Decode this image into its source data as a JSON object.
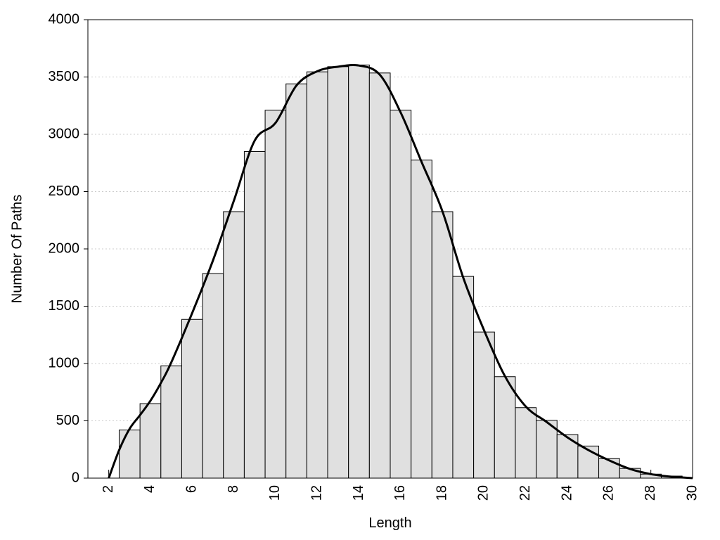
{
  "chart_data": {
    "type": "histogram",
    "xlabel": "Length",
    "ylabel": "Number Of Paths",
    "bins": [
      2.5,
      3.5,
      4.5,
      5.5,
      6.5,
      7.5,
      8.5,
      9.5,
      10.5,
      11.5,
      12.5,
      13.5,
      14.5,
      15.5,
      16.5,
      17.5,
      18.5,
      19.5,
      20.5,
      21.5,
      22.5,
      23.5,
      24.5,
      25.5,
      26.5,
      27.5,
      28.5,
      29.5
    ],
    "counts": [
      420,
      650,
      980,
      1385,
      1785,
      2325,
      2850,
      3210,
      3440,
      3545,
      3590,
      3605,
      3535,
      3210,
      2775,
      2325,
      1760,
      1275,
      885,
      615,
      505,
      380,
      280,
      170,
      85,
      35,
      18
    ],
    "color": "#e0e0e0",
    "curve": {
      "x": [
        2,
        2.5,
        3,
        3.5,
        4,
        4.5,
        5,
        6,
        7,
        8,
        9,
        10,
        11,
        12,
        13,
        14,
        15,
        16,
        17,
        18,
        19,
        20,
        21,
        22,
        23,
        24,
        25,
        26,
        27,
        28,
        29,
        30
      ],
      "y": [
        0,
        245,
        430,
        550,
        675,
        830,
        1010,
        1440,
        1900,
        2420,
        2945,
        3100,
        3425,
        3550,
        3590,
        3600,
        3520,
        3190,
        2760,
        2330,
        1750,
        1290,
        890,
        625,
        490,
        355,
        245,
        155,
        80,
        35,
        12,
        0
      ],
      "color": "#000000"
    },
    "xlim": [
      1,
      30
    ],
    "ylim": [
      0,
      4000
    ],
    "xticks": [
      2,
      4,
      6,
      8,
      10,
      12,
      14,
      16,
      18,
      20,
      22,
      24,
      26,
      28,
      30
    ],
    "yticks": [
      0,
      500,
      1000,
      1500,
      2000,
      2500,
      3000,
      3500,
      4000
    ],
    "grid": true
  }
}
